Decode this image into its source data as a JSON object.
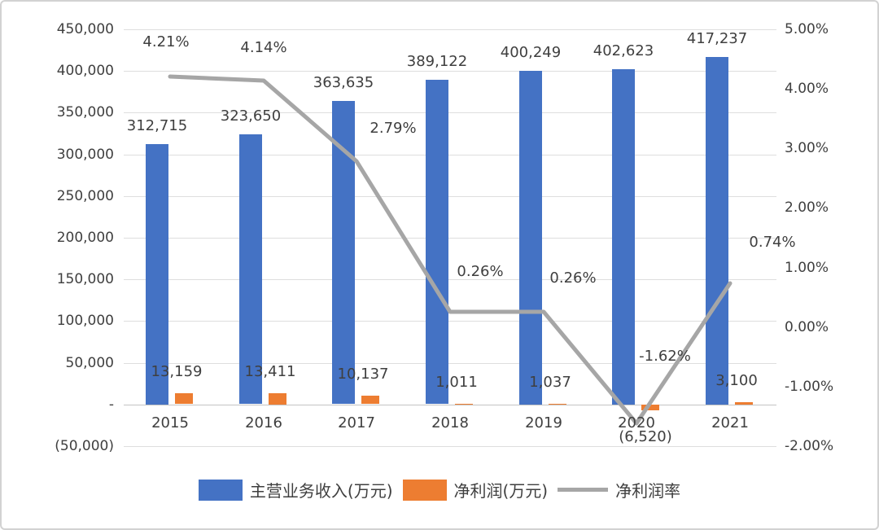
{
  "chart_data": {
    "type": "bar+line",
    "categories": [
      "2015",
      "2016",
      "2017",
      "2018",
      "2019",
      "2020",
      "2021"
    ],
    "series": [
      {
        "name": "主营业务收入(万元)",
        "type": "bar",
        "axis": "left",
        "color": "#4472C4",
        "values": [
          312715,
          323650,
          363635,
          389122,
          400249,
          402623,
          417237
        ],
        "labels": [
          "312,715",
          "323,650",
          "363,635",
          "389,122",
          "400,249",
          "402,623",
          "417,237"
        ]
      },
      {
        "name": "净利润(万元)",
        "type": "bar",
        "axis": "left",
        "color": "#ED7D31",
        "values": [
          13159,
          13411,
          10137,
          1011,
          1037,
          -6520,
          3100
        ],
        "labels": [
          "13,159",
          "13,411",
          "10,137",
          "1,011",
          "1,037",
          "(6,520)",
          "3,100"
        ]
      },
      {
        "name": "净利润率",
        "type": "line",
        "axis": "right",
        "color": "#A6A6A6",
        "values": [
          4.21,
          4.14,
          2.79,
          0.26,
          0.26,
          -1.62,
          0.74
        ],
        "labels": [
          "4.21%",
          "4.14%",
          "2.79%",
          "0.26%",
          "0.26%",
          "-1.62%",
          "0.74%"
        ]
      }
    ],
    "left_axis": {
      "min": -50000,
      "max": 450000,
      "step": 50000,
      "tick_labels": [
        "450,000",
        "400,000",
        "350,000",
        "300,000",
        "250,000",
        "200,000",
        "150,000",
        "100,000",
        "50,000",
        "-",
        "(50,000)"
      ]
    },
    "right_axis": {
      "min": -2,
      "max": 5,
      "step": 1,
      "tick_labels": [
        "5.00%",
        "4.00%",
        "3.00%",
        "2.00%",
        "1.00%",
        "0.00%",
        "-1.00%",
        "-2.00%"
      ]
    },
    "grid": true,
    "legend_position": "bottom"
  },
  "legend": {
    "items": [
      {
        "label": "主营业务收入(万元)",
        "color": "#4472C4",
        "marker": "rect"
      },
      {
        "label": "净利润(万元)",
        "color": "#ED7D31",
        "marker": "rect"
      },
      {
        "label": "净利润率",
        "color": "#A6A6A6",
        "marker": "line"
      }
    ]
  }
}
